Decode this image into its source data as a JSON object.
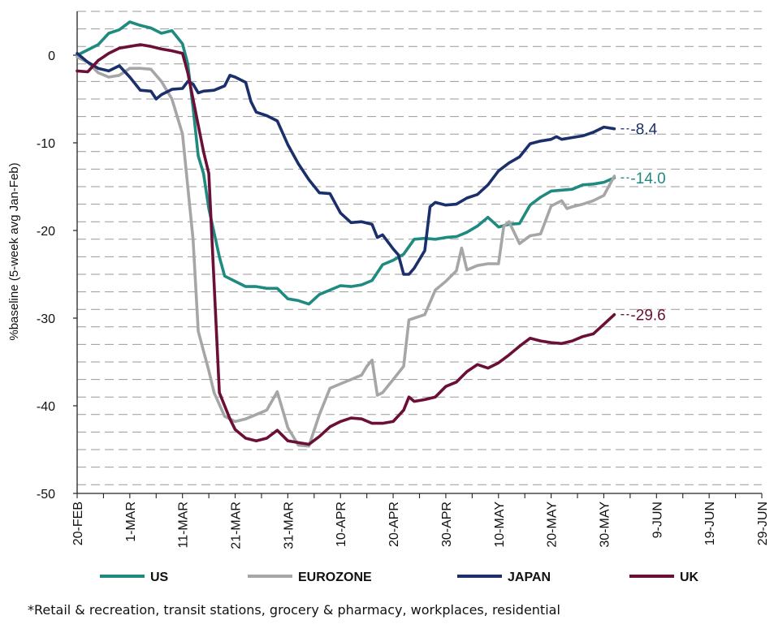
{
  "chart_data": {
    "type": "line",
    "title": "",
    "ylabel": "%baseline (5-week avg Jan-Feb)",
    "xlabel": "",
    "ylim": [
      -50,
      5
    ],
    "yticks": [
      0,
      -10,
      -20,
      -30,
      -40,
      -50
    ],
    "ytick_labels": [
      "0",
      "-10",
      "-20",
      "-30",
      "-40",
      "-50"
    ],
    "xlim": [
      "20-FEB",
      "29-JUN"
    ],
    "xticks": [
      "20-FEB",
      "1-MAR",
      "11-MAR",
      "21-MAR",
      "31-MAR",
      "10-APR",
      "20-APR",
      "30-APR",
      "10-MAY",
      "20-MAY",
      "30-MAY",
      "9-JUN",
      "19-JUN",
      "29-JUN"
    ],
    "grid": "horizontal dashed",
    "legend_position": "bottom",
    "series": [
      {
        "name": "US",
        "color": "#1f8a80",
        "end_label": "-14.0",
        "points": [
          [
            0,
            0
          ],
          [
            2,
            0.6
          ],
          [
            4,
            1.2
          ],
          [
            6,
            2.5
          ],
          [
            8,
            2.9
          ],
          [
            10,
            3.8
          ],
          [
            12,
            3.4
          ],
          [
            14,
            3.1
          ],
          [
            16,
            2.5
          ],
          [
            18,
            2.8
          ],
          [
            20,
            1.3
          ],
          [
            21,
            -1
          ],
          [
            22,
            -6
          ],
          [
            23,
            -11.5
          ],
          [
            24,
            -13.5
          ],
          [
            25,
            -17.5
          ],
          [
            27,
            -23
          ],
          [
            28,
            -25.2
          ],
          [
            30,
            -25.8
          ],
          [
            32,
            -26.4
          ],
          [
            34,
            -26.4
          ],
          [
            36,
            -26.6
          ],
          [
            38,
            -26.6
          ],
          [
            40,
            -27.8
          ],
          [
            42,
            -28
          ],
          [
            44,
            -28.4
          ],
          [
            46,
            -27.3
          ],
          [
            48,
            -26.8
          ],
          [
            50,
            -26.3
          ],
          [
            52,
            -26.4
          ],
          [
            54,
            -26.2
          ],
          [
            56,
            -25.7
          ],
          [
            58,
            -23.9
          ],
          [
            60,
            -23.4
          ],
          [
            62,
            -22.7
          ],
          [
            64,
            -21
          ],
          [
            66,
            -20.9
          ],
          [
            68,
            -21
          ],
          [
            70,
            -20.8
          ],
          [
            72,
            -20.7
          ],
          [
            74,
            -20.2
          ],
          [
            76,
            -19.5
          ],
          [
            78,
            -18.5
          ],
          [
            80,
            -19.6
          ],
          [
            82,
            -19.3
          ],
          [
            84,
            -19.2
          ],
          [
            86,
            -17.1
          ],
          [
            88,
            -16.2
          ],
          [
            90,
            -15.5
          ],
          [
            92,
            -15.4
          ],
          [
            94,
            -15.3
          ],
          [
            96,
            -14.8
          ],
          [
            98,
            -14.7
          ],
          [
            100,
            -14.5
          ],
          [
            102,
            -14.0
          ]
        ]
      },
      {
        "name": "EUROZONE",
        "color": "#a6a6a6",
        "end_label": "",
        "points": [
          [
            0,
            -0.2
          ],
          [
            2,
            -0.8
          ],
          [
            4,
            -2
          ],
          [
            6,
            -2.5
          ],
          [
            8,
            -2.3
          ],
          [
            10,
            -1.5
          ],
          [
            12,
            -1.5
          ],
          [
            14,
            -1.6
          ],
          [
            16,
            -3
          ],
          [
            18,
            -5
          ],
          [
            20,
            -9
          ],
          [
            21,
            -15
          ],
          [
            22,
            -21
          ],
          [
            23,
            -31.5
          ],
          [
            25,
            -36
          ],
          [
            26,
            -38.5
          ],
          [
            28,
            -41.2
          ],
          [
            30,
            -41.8
          ],
          [
            32,
            -41.5
          ],
          [
            34,
            -41
          ],
          [
            36,
            -40.5
          ],
          [
            38,
            -38.4
          ],
          [
            40,
            -42.5
          ],
          [
            42,
            -44.5
          ],
          [
            44,
            -44.6
          ],
          [
            46,
            -41
          ],
          [
            48,
            -38
          ],
          [
            50,
            -37.5
          ],
          [
            52,
            -37
          ],
          [
            54,
            -36.5
          ],
          [
            55,
            -35.5
          ],
          [
            56,
            -34.8
          ],
          [
            57,
            -38.8
          ],
          [
            58,
            -38.5
          ],
          [
            60,
            -37
          ],
          [
            62,
            -35.5
          ],
          [
            63,
            -30.2
          ],
          [
            64,
            -30
          ],
          [
            66,
            -29.6
          ],
          [
            68,
            -26.8
          ],
          [
            70,
            -25.8
          ],
          [
            72,
            -24.6
          ],
          [
            73,
            -22
          ],
          [
            74,
            -24.5
          ],
          [
            76,
            -24
          ],
          [
            78,
            -23.8
          ],
          [
            80,
            -23.8
          ],
          [
            81,
            -19.5
          ],
          [
            82,
            -19
          ],
          [
            84,
            -21.5
          ],
          [
            86,
            -20.6
          ],
          [
            88,
            -20.4
          ],
          [
            90,
            -17.2
          ],
          [
            92,
            -16.6
          ],
          [
            93,
            -17.5
          ],
          [
            94,
            -17.3
          ],
          [
            96,
            -17
          ],
          [
            98,
            -16.6
          ],
          [
            100,
            -16
          ],
          [
            102,
            -13.8
          ]
        ]
      },
      {
        "name": "JAPAN",
        "color": "#1b2f6b",
        "end_label": "-8.4",
        "points": [
          [
            0,
            0.2
          ],
          [
            2,
            -0.8
          ],
          [
            4,
            -1.5
          ],
          [
            6,
            -1.8
          ],
          [
            8,
            -1.2
          ],
          [
            10,
            -2.5
          ],
          [
            12,
            -4
          ],
          [
            14,
            -4.1
          ],
          [
            15,
            -5
          ],
          [
            16,
            -4.5
          ],
          [
            18,
            -3.9
          ],
          [
            20,
            -3.8
          ],
          [
            21,
            -3
          ],
          [
            22,
            -3.3
          ],
          [
            23,
            -4.3
          ],
          [
            24,
            -4.1
          ],
          [
            26,
            -4
          ],
          [
            28,
            -3.5
          ],
          [
            29,
            -2.3
          ],
          [
            30,
            -2.5
          ],
          [
            32,
            -3.1
          ],
          [
            33,
            -5.3
          ],
          [
            34,
            -6.5
          ],
          [
            36,
            -6.9
          ],
          [
            38,
            -7.5
          ],
          [
            40,
            -10.2
          ],
          [
            42,
            -12.4
          ],
          [
            44,
            -14.2
          ],
          [
            46,
            -15.7
          ],
          [
            48,
            -15.8
          ],
          [
            50,
            -18
          ],
          [
            52,
            -19.1
          ],
          [
            54,
            -19
          ],
          [
            56,
            -19.3
          ],
          [
            57,
            -20.8
          ],
          [
            58,
            -20.5
          ],
          [
            60,
            -22.1
          ],
          [
            61,
            -22.8
          ],
          [
            62,
            -25
          ],
          [
            63,
            -25
          ],
          [
            64,
            -24.3
          ],
          [
            66,
            -22.3
          ],
          [
            67,
            -17.3
          ],
          [
            68,
            -16.8
          ],
          [
            70,
            -17.1
          ],
          [
            72,
            -17
          ],
          [
            74,
            -16.3
          ],
          [
            76,
            -15.9
          ],
          [
            78,
            -14.8
          ],
          [
            80,
            -13.2
          ],
          [
            82,
            -12.3
          ],
          [
            84,
            -11.6
          ],
          [
            86,
            -10.1
          ],
          [
            88,
            -9.8
          ],
          [
            90,
            -9.6
          ],
          [
            91,
            -9.3
          ],
          [
            92,
            -9.6
          ],
          [
            94,
            -9.4
          ],
          [
            96,
            -9.2
          ],
          [
            98,
            -8.8
          ],
          [
            100,
            -8.2
          ],
          [
            102,
            -8.4
          ]
        ]
      },
      {
        "name": "UK",
        "color": "#6b0f36",
        "end_label": "-29.6",
        "points": [
          [
            0,
            -1.8
          ],
          [
            2,
            -1.9
          ],
          [
            4,
            -0.6
          ],
          [
            6,
            0.2
          ],
          [
            8,
            0.8
          ],
          [
            10,
            1
          ],
          [
            12,
            1.2
          ],
          [
            14,
            1
          ],
          [
            16,
            0.7
          ],
          [
            18,
            0.5
          ],
          [
            20,
            0.2
          ],
          [
            21,
            -2
          ],
          [
            22,
            -5
          ],
          [
            23,
            -8
          ],
          [
            24,
            -11
          ],
          [
            25,
            -13.5
          ],
          [
            26,
            -26
          ],
          [
            27,
            -38.5
          ],
          [
            28,
            -40
          ],
          [
            29,
            -41.5
          ],
          [
            30,
            -42.7
          ],
          [
            32,
            -43.7
          ],
          [
            34,
            -44
          ],
          [
            36,
            -43.7
          ],
          [
            38,
            -42.8
          ],
          [
            40,
            -44
          ],
          [
            42,
            -44.2
          ],
          [
            44,
            -44.4
          ],
          [
            46,
            -43.5
          ],
          [
            48,
            -42.4
          ],
          [
            50,
            -41.8
          ],
          [
            52,
            -41.4
          ],
          [
            54,
            -41.5
          ],
          [
            56,
            -42
          ],
          [
            58,
            -42
          ],
          [
            60,
            -41.8
          ],
          [
            62,
            -40.5
          ],
          [
            63,
            -39
          ],
          [
            64,
            -39.5
          ],
          [
            66,
            -39.3
          ],
          [
            68,
            -39
          ],
          [
            70,
            -37.8
          ],
          [
            72,
            -37.3
          ],
          [
            74,
            -36.1
          ],
          [
            76,
            -35.3
          ],
          [
            78,
            -35.7
          ],
          [
            80,
            -35.1
          ],
          [
            82,
            -34.2
          ],
          [
            84,
            -33.2
          ],
          [
            86,
            -32.3
          ],
          [
            88,
            -32.6
          ],
          [
            90,
            -32.8
          ],
          [
            92,
            -32.9
          ],
          [
            94,
            -32.6
          ],
          [
            96,
            -32.1
          ],
          [
            98,
            -31.8
          ],
          [
            100,
            -30.7
          ],
          [
            102,
            -29.6
          ]
        ]
      }
    ]
  },
  "footnote": "*Retail & recreation, transit stations, grocery & pharmacy, workplaces, residential"
}
